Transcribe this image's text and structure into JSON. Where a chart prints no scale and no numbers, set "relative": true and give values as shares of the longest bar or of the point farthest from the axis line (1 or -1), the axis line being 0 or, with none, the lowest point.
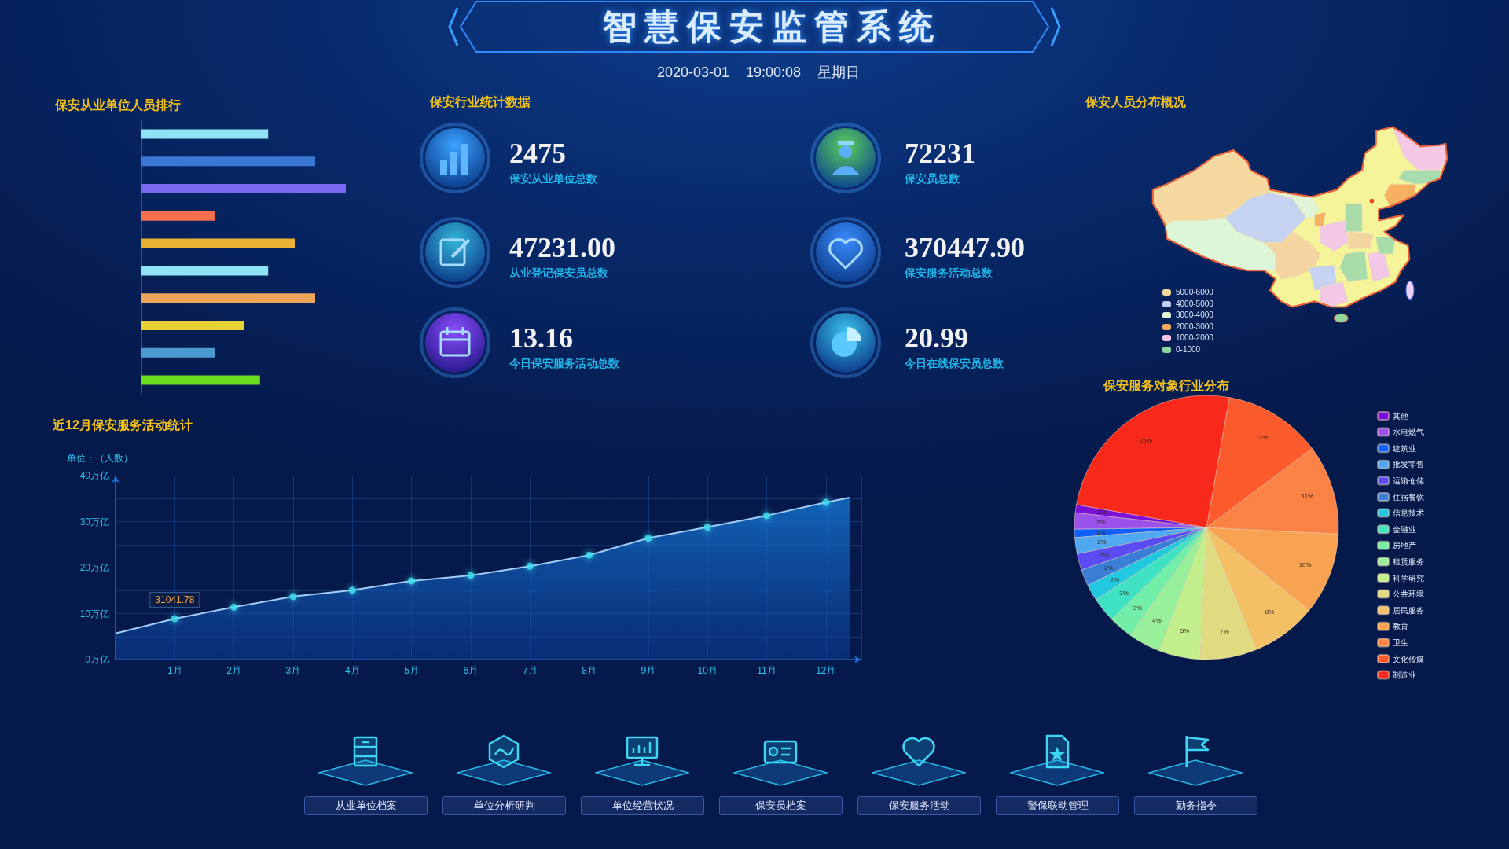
{
  "chart_data": [
    {
      "type": "other",
      "title": "智慧保安监管系统",
      "subtitle": "2020-03-01 19:00:08 星期日"
    },
    {
      "type": "bar",
      "orientation": "horizontal",
      "title": "保安从业单位人员排行",
      "categories": [
        null,
        null,
        null,
        null,
        null,
        null,
        null,
        null,
        null,
        null
      ],
      "values": [
        0.62,
        0.85,
        1,
        0.36,
        0.75,
        0.62,
        0.85,
        0.5,
        0.36,
        0.58
      ],
      "colors": [
        "#8ee4f4",
        "#3b78d6",
        "#7c69f2",
        "#f66f4e",
        "#e9b232",
        "#8ee4f4",
        "#eca45a",
        "#e6d232",
        "#4b9bd2",
        "#6adf1e"
      ],
      "relative": true
    },
    {
      "type": "other",
      "title": "保安行业统计数据",
      "categories": [
        "保安从业单位总数",
        "保安员总数",
        "从业登记保安员总数",
        "保安服务活动总数",
        "今日保安服务活动总数",
        "今日在线保安员总数"
      ],
      "value_labels": [
        "2475",
        "72231",
        "47231.00",
        "370447.90",
        "13.16",
        "20.99"
      ]
    },
    {
      "type": "other",
      "title": "保安人员分布概况",
      "categories": [
        "5000-6000",
        "4000-5000",
        "3000-4000",
        "2000-3000",
        "1000-2000",
        "0-1000"
      ],
      "colors": [
        "#f5d79c",
        "#c3cdf3",
        "#ddf5d5",
        "#f5a85e",
        "#f3c5e6",
        "#8fd6a0"
      ]
    },
    {
      "type": "area",
      "title": "近12月保安服务活动统计",
      "ylabel": "单位：（人数）",
      "xlim": [
        0,
        12.6
      ],
      "xticks": [
        {
          "value": 1,
          "label": "1月"
        },
        {
          "value": 2,
          "label": "2月"
        },
        {
          "value": 3,
          "label": "3月"
        },
        {
          "value": 4,
          "label": "4月"
        },
        {
          "value": 5,
          "label": "5月"
        },
        {
          "value": 6,
          "label": "6月"
        },
        {
          "value": 7,
          "label": "7月"
        },
        {
          "value": 8,
          "label": "8月"
        },
        {
          "value": 9,
          "label": "9月"
        },
        {
          "value": 10,
          "label": "10月"
        },
        {
          "value": 11,
          "label": "11月"
        },
        {
          "value": 12,
          "label": "12月"
        }
      ],
      "ylim": [
        0,
        40
      ],
      "yticks": [
        {
          "value": 0,
          "label": "0万亿"
        },
        {
          "value": 5,
          "label": null
        },
        {
          "value": 10,
          "label": "10万亿"
        },
        {
          "value": 15,
          "label": null
        },
        {
          "value": 20,
          "label": "20万亿"
        },
        {
          "value": 25,
          "label": null
        },
        {
          "value": 30,
          "label": "30万亿"
        },
        {
          "value": 35,
          "label": null
        },
        {
          "value": 40,
          "label": "40万亿"
        }
      ],
      "grid": true,
      "series": [
        {
          "type": "area",
          "color": "#1683e6",
          "marker": "none",
          "x": [
            0,
            1,
            2,
            3,
            4,
            5,
            6,
            7,
            8,
            9,
            10,
            11,
            12,
            12.4
          ],
          "values": [
            5.7,
            8.9,
            11.4,
            13.7,
            15.1,
            17.1,
            18.3,
            20.3,
            22.7,
            26.4,
            28.8,
            31.3,
            34.2,
            35.2
          ]
        },
        {
          "type": "scatter",
          "color": "#3fe3f2",
          "marker": "circle",
          "x": [
            1,
            2,
            3,
            4,
            5,
            6,
            7,
            8,
            9,
            10,
            11,
            12
          ],
          "values": [
            8.9,
            11.4,
            13.7,
            15.1,
            17.1,
            18.3,
            20.3,
            22.7,
            26.4,
            28.8,
            31.3,
            34.2
          ]
        }
      ],
      "annotations": [
        {
          "text": "31041.78",
          "x": 1,
          "y": 8.9
        }
      ]
    },
    {
      "type": "pie",
      "title": "保安服务对象行业分布",
      "categories": [
        "其他",
        "水电燃气",
        "建筑业",
        "批发零售",
        "运输仓储",
        "住宿餐饮",
        "信息技术",
        "金融业",
        "房地产",
        "租赁服务",
        "科学研究",
        "公共环境",
        "居民服务",
        "教育",
        "卫生",
        "文化传媒",
        "制造业"
      ],
      "values": [
        1,
        2,
        1,
        2,
        2,
        2,
        2,
        3,
        3,
        4,
        5,
        7,
        8,
        10,
        11,
        12,
        25
      ],
      "value_labels": [
        "1%",
        "2%",
        "1%",
        "2%",
        "2%",
        "2%",
        "2%",
        "3%",
        "3%",
        "4%",
        "5%",
        "7%",
        "8%",
        "10%",
        "11%",
        "12%",
        "25%"
      ],
      "colors": [
        "#7a10d6",
        "#9a52ea",
        "#1060ff",
        "#4fa8f0",
        "#5a4cf2",
        "#3a7ed8",
        "#22c8e0",
        "#3fe2c2",
        "#72eea8",
        "#98f09a",
        "#c2ee8c",
        "#e0da80",
        "#f4c066",
        "#f8a352",
        "#fa8244",
        "#fa5a2c",
        "#f8281a"
      ],
      "legend": "right"
    },
    {
      "type": "other",
      "categories": [
        "从业单位档案",
        "单位分析研判",
        "单位经营状况",
        "保安员档案",
        "保安服务活动",
        "警保联动管理",
        "勤务指令"
      ]
    }
  ]
}
